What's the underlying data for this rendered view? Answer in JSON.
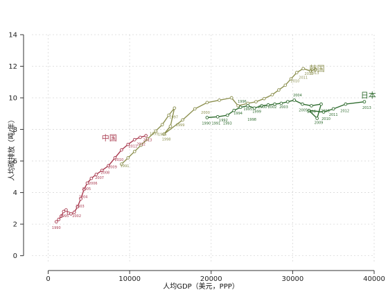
{
  "chart_data": {
    "type": "line",
    "title": "",
    "xlabel": "人均GDP（美元，PPP）",
    "ylabel": "人均碳排放（吨/年）",
    "xlim": [
      -2000,
      40000
    ],
    "ylim": [
      -0.5,
      14
    ],
    "x_ticks": [
      0,
      10000,
      20000,
      30000,
      40000
    ],
    "y_ticks": [
      0,
      2,
      4,
      6,
      8,
      10,
      12,
      14
    ],
    "grid": true,
    "legend": "labels at series ends",
    "series": [
      {
        "name": "中国",
        "color": "#a8394e",
        "label_pos": [
          7500,
          7.3
        ],
        "points": [
          [
            1000,
            2.15
          ],
          [
            1300,
            2.3
          ],
          [
            1600,
            2.5
          ],
          [
            1900,
            2.8
          ],
          [
            2200,
            2.9
          ],
          [
            2500,
            2.7
          ],
          [
            2800,
            2.65
          ],
          [
            3200,
            2.75
          ],
          [
            3600,
            3.1
          ],
          [
            4000,
            3.6
          ],
          [
            4400,
            4.2
          ],
          [
            4800,
            4.6
          ],
          [
            5300,
            4.9
          ],
          [
            5900,
            5.15
          ],
          [
            6600,
            5.4
          ],
          [
            7400,
            5.7
          ],
          [
            8200,
            6.2
          ],
          [
            9000,
            6.7
          ],
          [
            9800,
            7.05
          ],
          [
            10600,
            7.35
          ],
          [
            11300,
            7.5
          ],
          [
            12000,
            7.6
          ]
        ],
        "year_labels": [
          {
            "text": "1990",
            "x": 1000,
            "y": 1.7
          },
          {
            "text": "1995",
            "x": 2000,
            "y": 2.45
          },
          {
            "text": "2002",
            "x": 3500,
            "y": 2.45
          },
          {
            "text": "2003",
            "x": 3900,
            "y": 3.05
          },
          {
            "text": "2004",
            "x": 4300,
            "y": 3.65
          },
          {
            "text": "2005",
            "x": 4700,
            "y": 4.15
          },
          {
            "text": "2006",
            "x": 5500,
            "y": 4.5
          },
          {
            "text": "2007",
            "x": 6300,
            "y": 4.85
          },
          {
            "text": "2008",
            "x": 7000,
            "y": 5.2
          },
          {
            "text": "2009",
            "x": 7900,
            "y": 5.55
          },
          {
            "text": "2010",
            "x": 8700,
            "y": 6.0
          },
          {
            "text": "2011",
            "x": 10400,
            "y": 6.85
          },
          {
            "text": "2012",
            "x": 11400,
            "y": 7.0
          },
          {
            "text": "2013",
            "x": 12200,
            "y": 7.25
          }
        ]
      },
      {
        "name": "韩国",
        "color": "#8c9050",
        "label_pos": [
          33000,
          11.7
        ],
        "points": [
          [
            9000,
            5.8
          ],
          [
            9800,
            6.2
          ],
          [
            10600,
            6.6
          ],
          [
            11400,
            7.0
          ],
          [
            12200,
            7.4
          ],
          [
            13200,
            7.9
          ],
          [
            14000,
            8.3
          ],
          [
            14800,
            8.9
          ],
          [
            15500,
            9.35
          ],
          [
            15000,
            8.2
          ],
          [
            14200,
            7.7
          ],
          [
            16500,
            8.6
          ],
          [
            18000,
            9.3
          ],
          [
            19500,
            9.7
          ],
          [
            21000,
            9.85
          ],
          [
            22500,
            10.0
          ],
          [
            23300,
            9.5
          ],
          [
            24500,
            9.65
          ],
          [
            25500,
            9.75
          ],
          [
            26500,
            9.95
          ],
          [
            27500,
            10.2
          ],
          [
            28300,
            10.5
          ],
          [
            29100,
            10.8
          ],
          [
            29800,
            11.2
          ],
          [
            30500,
            11.6
          ],
          [
            31300,
            11.85
          ],
          [
            32200,
            11.7
          ],
          [
            32800,
            11.8
          ]
        ],
        "year_labels": [
          {
            "text": "1991",
            "x": 9400,
            "y": 5.6
          },
          {
            "text": "1995",
            "x": 13000,
            "y": 7.65
          },
          {
            "text": "1996",
            "x": 14000,
            "y": 7.6
          },
          {
            "text": "1997",
            "x": 15400,
            "y": 8.7
          },
          {
            "text": "1998",
            "x": 14500,
            "y": 7.3
          },
          {
            "text": "1999",
            "x": 16200,
            "y": 8.2
          },
          {
            "text": "2000",
            "x": 19300,
            "y": 9.0
          },
          {
            "text": "2010",
            "x": 30300,
            "y": 11.0
          },
          {
            "text": "2011",
            "x": 31300,
            "y": 11.2
          },
          {
            "text": "2012",
            "x": 32000,
            "y": 11.45
          },
          {
            "text": "2013",
            "x": 32700,
            "y": 11.5
          }
        ]
      },
      {
        "name": "日本",
        "color": "#2e6b2e",
        "label_pos": [
          39300,
          10.0
        ],
        "points": [
          [
            19500,
            8.75
          ],
          [
            20800,
            8.8
          ],
          [
            22000,
            8.9
          ],
          [
            22800,
            9.2
          ],
          [
            23600,
            9.4
          ],
          [
            24500,
            9.5
          ],
          [
            25300,
            9.35
          ],
          [
            26200,
            9.5
          ],
          [
            27000,
            9.55
          ],
          [
            27800,
            9.6
          ],
          [
            28600,
            9.65
          ],
          [
            29400,
            9.75
          ],
          [
            30200,
            9.85
          ],
          [
            31200,
            9.6
          ],
          [
            32300,
            9.5
          ],
          [
            33500,
            9.6
          ],
          [
            33000,
            8.7
          ],
          [
            32000,
            9.2
          ],
          [
            33800,
            9.1
          ],
          [
            35000,
            9.3
          ],
          [
            36500,
            9.6
          ],
          [
            38800,
            9.75
          ]
        ],
        "year_labels": [
          {
            "text": "1990",
            "x": 19400,
            "y": 8.3
          },
          {
            "text": "1991",
            "x": 20600,
            "y": 8.3
          },
          {
            "text": "1992",
            "x": 21500,
            "y": 8.5
          },
          {
            "text": "1993",
            "x": 22000,
            "y": 8.3
          },
          {
            "text": "1994",
            "x": 23300,
            "y": 8.95
          },
          {
            "text": "1995",
            "x": 24500,
            "y": 9.2
          },
          {
            "text": "1996",
            "x": 23800,
            "y": 9.7
          },
          {
            "text": "1998",
            "x": 25000,
            "y": 8.55
          },
          {
            "text": "1999",
            "x": 25600,
            "y": 9.05
          },
          {
            "text": "2000",
            "x": 26300,
            "y": 9.35
          },
          {
            "text": "2002",
            "x": 27500,
            "y": 9.35
          },
          {
            "text": "2003",
            "x": 28900,
            "y": 9.35
          },
          {
            "text": "2004",
            "x": 30600,
            "y": 10.1
          },
          {
            "text": "2005",
            "x": 31300,
            "y": 9.15
          },
          {
            "text": "2006",
            "x": 32300,
            "y": 9.05
          },
          {
            "text": "2008",
            "x": 34000,
            "y": 9.1
          },
          {
            "text": "2009",
            "x": 33200,
            "y": 8.35
          },
          {
            "text": "2010",
            "x": 34100,
            "y": 8.6
          },
          {
            "text": "2011",
            "x": 35000,
            "y": 8.85
          },
          {
            "text": "2012",
            "x": 36400,
            "y": 9.1
          },
          {
            "text": "2013",
            "x": 39100,
            "y": 9.3
          }
        ]
      }
    ]
  }
}
